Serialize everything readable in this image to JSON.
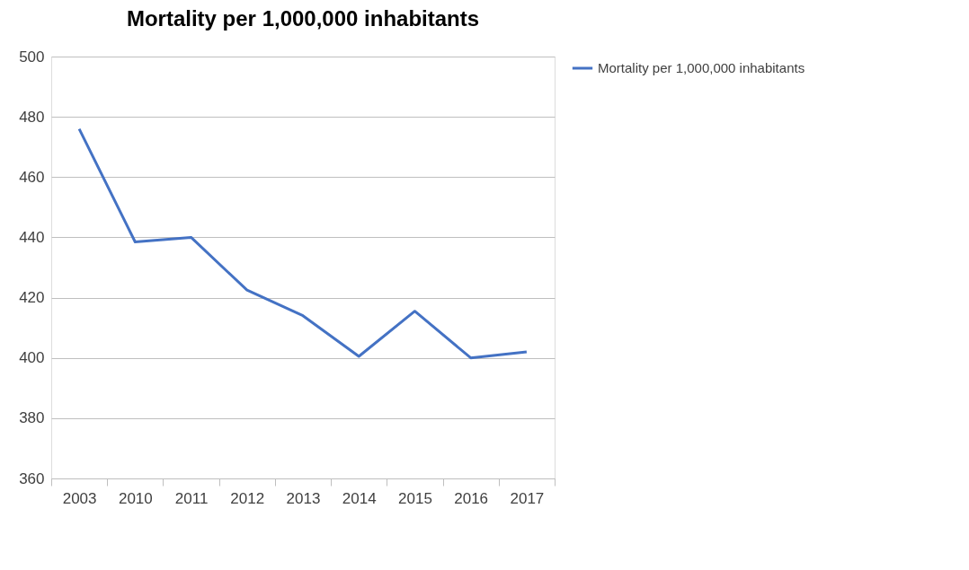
{
  "chart_data": {
    "type": "line",
    "title": "Mortality per 1,000,000 inhabitants",
    "categories": [
      "2003",
      "2010",
      "2011",
      "2012",
      "2013",
      "2014",
      "2015",
      "2016",
      "2017"
    ],
    "series": [
      {
        "name": "Mortality per 1,000,000 inhabitants",
        "color": "#4472c4",
        "values": [
          476,
          438.5,
          440,
          422.5,
          414,
          400.5,
          415.5,
          400,
          402
        ]
      }
    ],
    "ylim": [
      360,
      500
    ],
    "yticks": [
      360,
      380,
      400,
      420,
      440,
      460,
      480,
      500
    ],
    "grid": "y",
    "legend": "right",
    "marker": "none",
    "line_style": "solid"
  }
}
